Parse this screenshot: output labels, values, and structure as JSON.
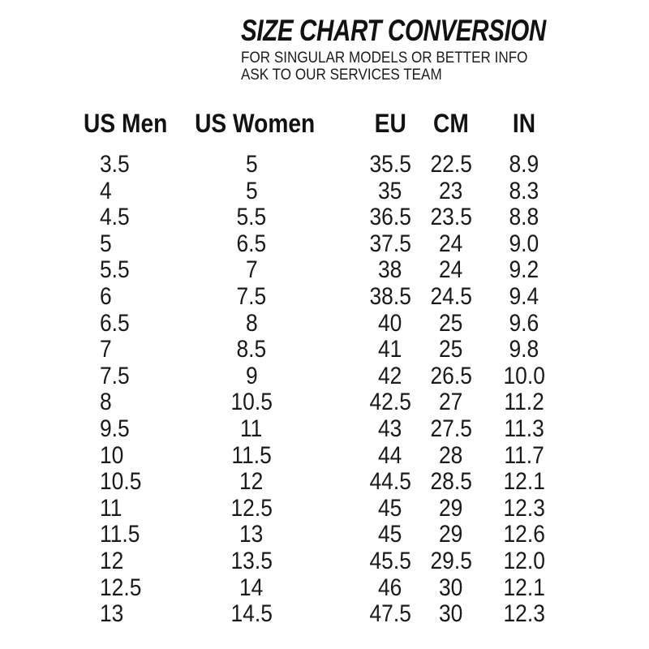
{
  "header": {
    "title": "SIZE CHART CONVERSION",
    "subtitle_line1": "FOR SINGULAR MODELS OR BETTER INFO",
    "subtitle_line2": "ASK TO OUR SERVICES TEAM"
  },
  "colors": {
    "background": "#ffffff",
    "text": "#161616"
  },
  "chart_data": {
    "type": "table",
    "title": "SIZE CHART CONVERSION",
    "subtitle": [
      "FOR SINGULAR MODELS OR BETTER INFO",
      "ASK TO OUR SERVICES TEAM"
    ],
    "columns": [
      "US Men",
      "US Women",
      "EU",
      "CM",
      "IN"
    ],
    "rows": [
      [
        "3.5",
        "5",
        "35.5",
        "22.5",
        "8.9"
      ],
      [
        "4",
        "5",
        "35",
        "23",
        "8.3"
      ],
      [
        "4.5",
        "5.5",
        "36.5",
        "23.5",
        "8.8"
      ],
      [
        "5",
        "6.5",
        "37.5",
        "24",
        "9.0"
      ],
      [
        "5.5",
        "7",
        "38",
        "24",
        "9.2"
      ],
      [
        "6",
        "7.5",
        "38.5",
        "24.5",
        "9.4"
      ],
      [
        "6.5",
        "8",
        "40",
        "25",
        "9.6"
      ],
      [
        "7",
        "8.5",
        "41",
        "25",
        "9.8"
      ],
      [
        "7.5",
        "9",
        "42",
        "26.5",
        "10.0"
      ],
      [
        "8",
        "10.5",
        "42.5",
        "27",
        "11.2"
      ],
      [
        "9.5",
        "11",
        "43",
        "27.5",
        "11.3"
      ],
      [
        "10",
        "11.5",
        "44",
        "28",
        "11.7"
      ],
      [
        "10.5",
        "12",
        "44.5",
        "28.5",
        "12.1"
      ],
      [
        "11",
        "12.5",
        "45",
        "29",
        "12.3"
      ],
      [
        "11.5",
        "13",
        "45",
        "29",
        "12.6"
      ],
      [
        "12",
        "13.5",
        "45.5",
        "29.5",
        "12.0"
      ],
      [
        "12.5",
        "14",
        "46",
        "30",
        "12.1"
      ],
      [
        "13",
        "14.5",
        "47.5",
        "30",
        "12.3"
      ]
    ]
  }
}
